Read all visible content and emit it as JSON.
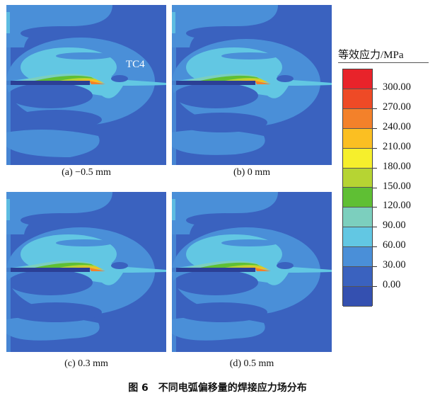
{
  "panels": [
    {
      "caption": "(a) −0.5 mm",
      "material_label": "TC4"
    },
    {
      "caption": "(b) 0 mm"
    },
    {
      "caption": "(c) 0.3 mm"
    },
    {
      "caption": "(d) 0.5 mm"
    }
  ],
  "legend": {
    "title": "等效应力/MPa",
    "labels": [
      "300.00",
      "270.00",
      "240.00",
      "210.00",
      "180.00",
      "150.00",
      "120.00",
      "90.00",
      "60.00",
      "30.00",
      "0.00"
    ],
    "colors": [
      "#e8232a",
      "#ee4a26",
      "#f3812a",
      "#fbbf22",
      "#f6ef2c",
      "#b6d433",
      "#5fbf34",
      "#7ccfbe",
      "#62c7e3",
      "#4a8fd8",
      "#3a62bf",
      "#3450b0"
    ]
  },
  "figure_caption": "图 6　不同电弧偏移量的焊接应力场分布"
}
